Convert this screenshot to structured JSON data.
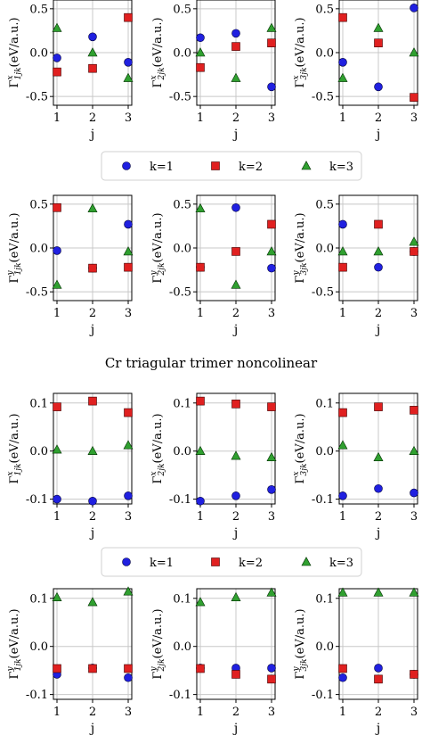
{
  "figure": {
    "legend_labels": [
      "k=1",
      "k=2",
      "k=3"
    ],
    "colors": {
      "k1": "#2020e0",
      "k2": "#e02020",
      "k3": "#30a030",
      "grid": "#c8c8c8",
      "axis": "#000000"
    },
    "markers": {
      "k1": "circle",
      "k2": "square",
      "k3": "triangle"
    },
    "section_title": "Cr triagular trimer noncolinear",
    "x_label": "j",
    "x_ticks": [
      1,
      2,
      3
    ],
    "ylabel_unit": "(eV/a.u.)",
    "ylabel_symbol": "Γ"
  },
  "chart_data": [
    {
      "type": "scatter",
      "block": "top",
      "row": 1,
      "col": 1,
      "comp": "x",
      "i": 1,
      "ylim": [
        -0.6,
        0.6
      ],
      "yticks": [
        "0.5",
        "0.0",
        "-0.5"
      ],
      "ytick_values": [
        0.5,
        0,
        -0.5
      ],
      "series": [
        {
          "name": "k=1",
          "x": [
            1,
            2,
            3
          ],
          "values": [
            -0.06,
            0.18,
            -0.11
          ]
        },
        {
          "name": "k=2",
          "x": [
            1,
            2,
            3
          ],
          "values": [
            -0.22,
            -0.18,
            0.4
          ]
        },
        {
          "name": "k=3",
          "x": [
            1,
            2,
            3
          ],
          "values": [
            0.28,
            0.0,
            -0.29
          ]
        }
      ]
    },
    {
      "type": "scatter",
      "block": "top",
      "row": 1,
      "col": 2,
      "comp": "x",
      "i": 2,
      "ylim": [
        -0.6,
        0.6
      ],
      "yticks": [
        "0.5",
        "0.0",
        "-0.5"
      ],
      "ytick_values": [
        0.5,
        0,
        -0.5
      ],
      "series": [
        {
          "name": "k=1",
          "x": [
            1,
            2,
            3
          ],
          "values": [
            0.17,
            0.22,
            -0.39
          ]
        },
        {
          "name": "k=2",
          "x": [
            1,
            2,
            3
          ],
          "values": [
            -0.17,
            0.07,
            0.11
          ]
        },
        {
          "name": "k=3",
          "x": [
            1,
            2,
            3
          ],
          "values": [
            0.0,
            -0.29,
            0.28
          ]
        }
      ]
    },
    {
      "type": "scatter",
      "block": "top",
      "row": 1,
      "col": 3,
      "comp": "x",
      "i": 3,
      "ylim": [
        -0.6,
        0.6
      ],
      "yticks": [
        "0.5",
        "0.0",
        "-0.5"
      ],
      "ytick_values": [
        0.5,
        0,
        -0.5
      ],
      "series": [
        {
          "name": "k=1",
          "x": [
            1,
            2,
            3
          ],
          "values": [
            -0.11,
            -0.39,
            0.51
          ]
        },
        {
          "name": "k=2",
          "x": [
            1,
            2,
            3
          ],
          "values": [
            0.4,
            0.11,
            -0.51
          ]
        },
        {
          "name": "k=3",
          "x": [
            1,
            2,
            3
          ],
          "values": [
            -0.29,
            0.28,
            0.0
          ]
        }
      ]
    },
    {
      "type": "scatter",
      "block": "top",
      "row": 2,
      "col": 1,
      "comp": "y",
      "i": 1,
      "ylim": [
        -0.6,
        0.6
      ],
      "yticks": [
        "0.5",
        "0.0",
        "-0.5"
      ],
      "ytick_values": [
        0.5,
        0,
        -0.5
      ],
      "series": [
        {
          "name": "k=1",
          "x": [
            1,
            2,
            3
          ],
          "values": [
            -0.03,
            -0.23,
            0.27
          ]
        },
        {
          "name": "k=2",
          "x": [
            1,
            2,
            3
          ],
          "values": [
            0.46,
            -0.23,
            -0.22
          ]
        },
        {
          "name": "k=3",
          "x": [
            1,
            2,
            3
          ],
          "values": [
            -0.42,
            0.45,
            -0.04
          ]
        }
      ]
    },
    {
      "type": "scatter",
      "block": "top",
      "row": 2,
      "col": 2,
      "comp": "y",
      "i": 2,
      "ylim": [
        -0.6,
        0.6
      ],
      "yticks": [
        "0.5",
        "0.0",
        "-0.5"
      ],
      "ytick_values": [
        0.5,
        0,
        -0.5
      ],
      "series": [
        {
          "name": "k=1",
          "x": [
            1,
            2,
            3
          ],
          "values": [
            -0.22,
            0.46,
            -0.23
          ]
        },
        {
          "name": "k=2",
          "x": [
            1,
            2,
            3
          ],
          "values": [
            -0.22,
            -0.04,
            0.27
          ]
        },
        {
          "name": "k=3",
          "x": [
            1,
            2,
            3
          ],
          "values": [
            0.45,
            -0.42,
            -0.04
          ]
        }
      ]
    },
    {
      "type": "scatter",
      "block": "top",
      "row": 2,
      "col": 3,
      "comp": "y",
      "i": 3,
      "ylim": [
        -0.6,
        0.6
      ],
      "yticks": [
        "0.5",
        "0.0",
        "-0.5"
      ],
      "ytick_values": [
        0.5,
        0,
        -0.5
      ],
      "series": [
        {
          "name": "k=1",
          "x": [
            1,
            2,
            3
          ],
          "values": [
            0.27,
            -0.22,
            -0.04
          ]
        },
        {
          "name": "k=2",
          "x": [
            1,
            2,
            3
          ],
          "values": [
            -0.22,
            0.27,
            -0.04
          ]
        },
        {
          "name": "k=3",
          "x": [
            1,
            2,
            3
          ],
          "values": [
            -0.04,
            -0.04,
            0.07
          ]
        }
      ]
    },
    {
      "type": "scatter",
      "block": "bottom",
      "row": 1,
      "col": 1,
      "comp": "x",
      "i": 1,
      "ylim": [
        -0.11,
        0.12
      ],
      "yticks": [
        "0.1",
        "0.0",
        "-0.1"
      ],
      "ytick_values": [
        0.1,
        0,
        -0.1
      ],
      "series": [
        {
          "name": "k=1",
          "x": [
            1,
            2,
            3
          ],
          "values": [
            -0.1,
            -0.104,
            -0.093
          ]
        },
        {
          "name": "k=2",
          "x": [
            1,
            2,
            3
          ],
          "values": [
            0.092,
            0.104,
            0.08
          ]
        },
        {
          "name": "k=3",
          "x": [
            1,
            2,
            3
          ],
          "values": [
            0.003,
            0.0,
            0.012
          ]
        }
      ]
    },
    {
      "type": "scatter",
      "block": "bottom",
      "row": 1,
      "col": 2,
      "comp": "x",
      "i": 2,
      "ylim": [
        -0.11,
        0.12
      ],
      "yticks": [
        "0.1",
        "0.0",
        "-0.1"
      ],
      "ytick_values": [
        0.1,
        0,
        -0.1
      ],
      "series": [
        {
          "name": "k=1",
          "x": [
            1,
            2,
            3
          ],
          "values": [
            -0.104,
            -0.093,
            -0.08
          ]
        },
        {
          "name": "k=2",
          "x": [
            1,
            2,
            3
          ],
          "values": [
            0.104,
            0.098,
            0.092
          ]
        },
        {
          "name": "k=3",
          "x": [
            1,
            2,
            3
          ],
          "values": [
            0.0,
            -0.01,
            -0.013
          ]
        }
      ]
    },
    {
      "type": "scatter",
      "block": "bottom",
      "row": 1,
      "col": 3,
      "comp": "x",
      "i": 3,
      "ylim": [
        -0.11,
        0.12
      ],
      "yticks": [
        "0.1",
        "0.0",
        "-0.1"
      ],
      "ytick_values": [
        0.1,
        0,
        -0.1
      ],
      "series": [
        {
          "name": "k=1",
          "x": [
            1,
            2,
            3
          ],
          "values": [
            -0.093,
            -0.078,
            -0.087
          ]
        },
        {
          "name": "k=2",
          "x": [
            1,
            2,
            3
          ],
          "values": [
            0.08,
            0.092,
            0.085
          ]
        },
        {
          "name": "k=3",
          "x": [
            1,
            2,
            3
          ],
          "values": [
            0.012,
            -0.013,
            0.0
          ]
        }
      ]
    },
    {
      "type": "scatter",
      "block": "bottom",
      "row": 2,
      "col": 1,
      "comp": "y",
      "i": 1,
      "ylim": [
        -0.11,
        0.12
      ],
      "yticks": [
        "0.1",
        "0.0",
        "-0.1"
      ],
      "ytick_values": [
        0.1,
        0,
        -0.1
      ],
      "series": [
        {
          "name": "k=1",
          "x": [
            1,
            2,
            3
          ],
          "values": [
            -0.058,
            -0.045,
            -0.065
          ]
        },
        {
          "name": "k=2",
          "x": [
            1,
            2,
            3
          ],
          "values": [
            -0.046,
            -0.046,
            -0.046
          ]
        },
        {
          "name": "k=3",
          "x": [
            1,
            2,
            3
          ],
          "values": [
            0.102,
            0.092,
            0.114
          ]
        }
      ]
    },
    {
      "type": "scatter",
      "block": "bottom",
      "row": 2,
      "col": 2,
      "comp": "y",
      "i": 2,
      "ylim": [
        -0.11,
        0.12
      ],
      "yticks": [
        "0.1",
        "0.0",
        "-0.1"
      ],
      "ytick_values": [
        0.1,
        0,
        -0.1
      ],
      "series": [
        {
          "name": "k=1",
          "x": [
            1,
            2,
            3
          ],
          "values": [
            -0.045,
            -0.045,
            -0.045
          ]
        },
        {
          "name": "k=2",
          "x": [
            1,
            2,
            3
          ],
          "values": [
            -0.046,
            -0.058,
            -0.068
          ]
        },
        {
          "name": "k=3",
          "x": [
            1,
            2,
            3
          ],
          "values": [
            0.092,
            0.102,
            0.112
          ]
        }
      ]
    },
    {
      "type": "scatter",
      "block": "bottom",
      "row": 2,
      "col": 3,
      "comp": "y",
      "i": 3,
      "ylim": [
        -0.11,
        0.12
      ],
      "yticks": [
        "0.1",
        "0.0",
        "-0.1"
      ],
      "ytick_values": [
        0.1,
        0,
        -0.1
      ],
      "series": [
        {
          "name": "k=1",
          "x": [
            1,
            2,
            3
          ],
          "values": [
            -0.065,
            -0.045,
            -0.058
          ]
        },
        {
          "name": "k=2",
          "x": [
            1,
            2,
            3
          ],
          "values": [
            -0.046,
            -0.068,
            -0.058
          ]
        },
        {
          "name": "k=3",
          "x": [
            1,
            2,
            3
          ],
          "values": [
            0.112,
            0.112,
            0.112
          ]
        }
      ]
    }
  ]
}
